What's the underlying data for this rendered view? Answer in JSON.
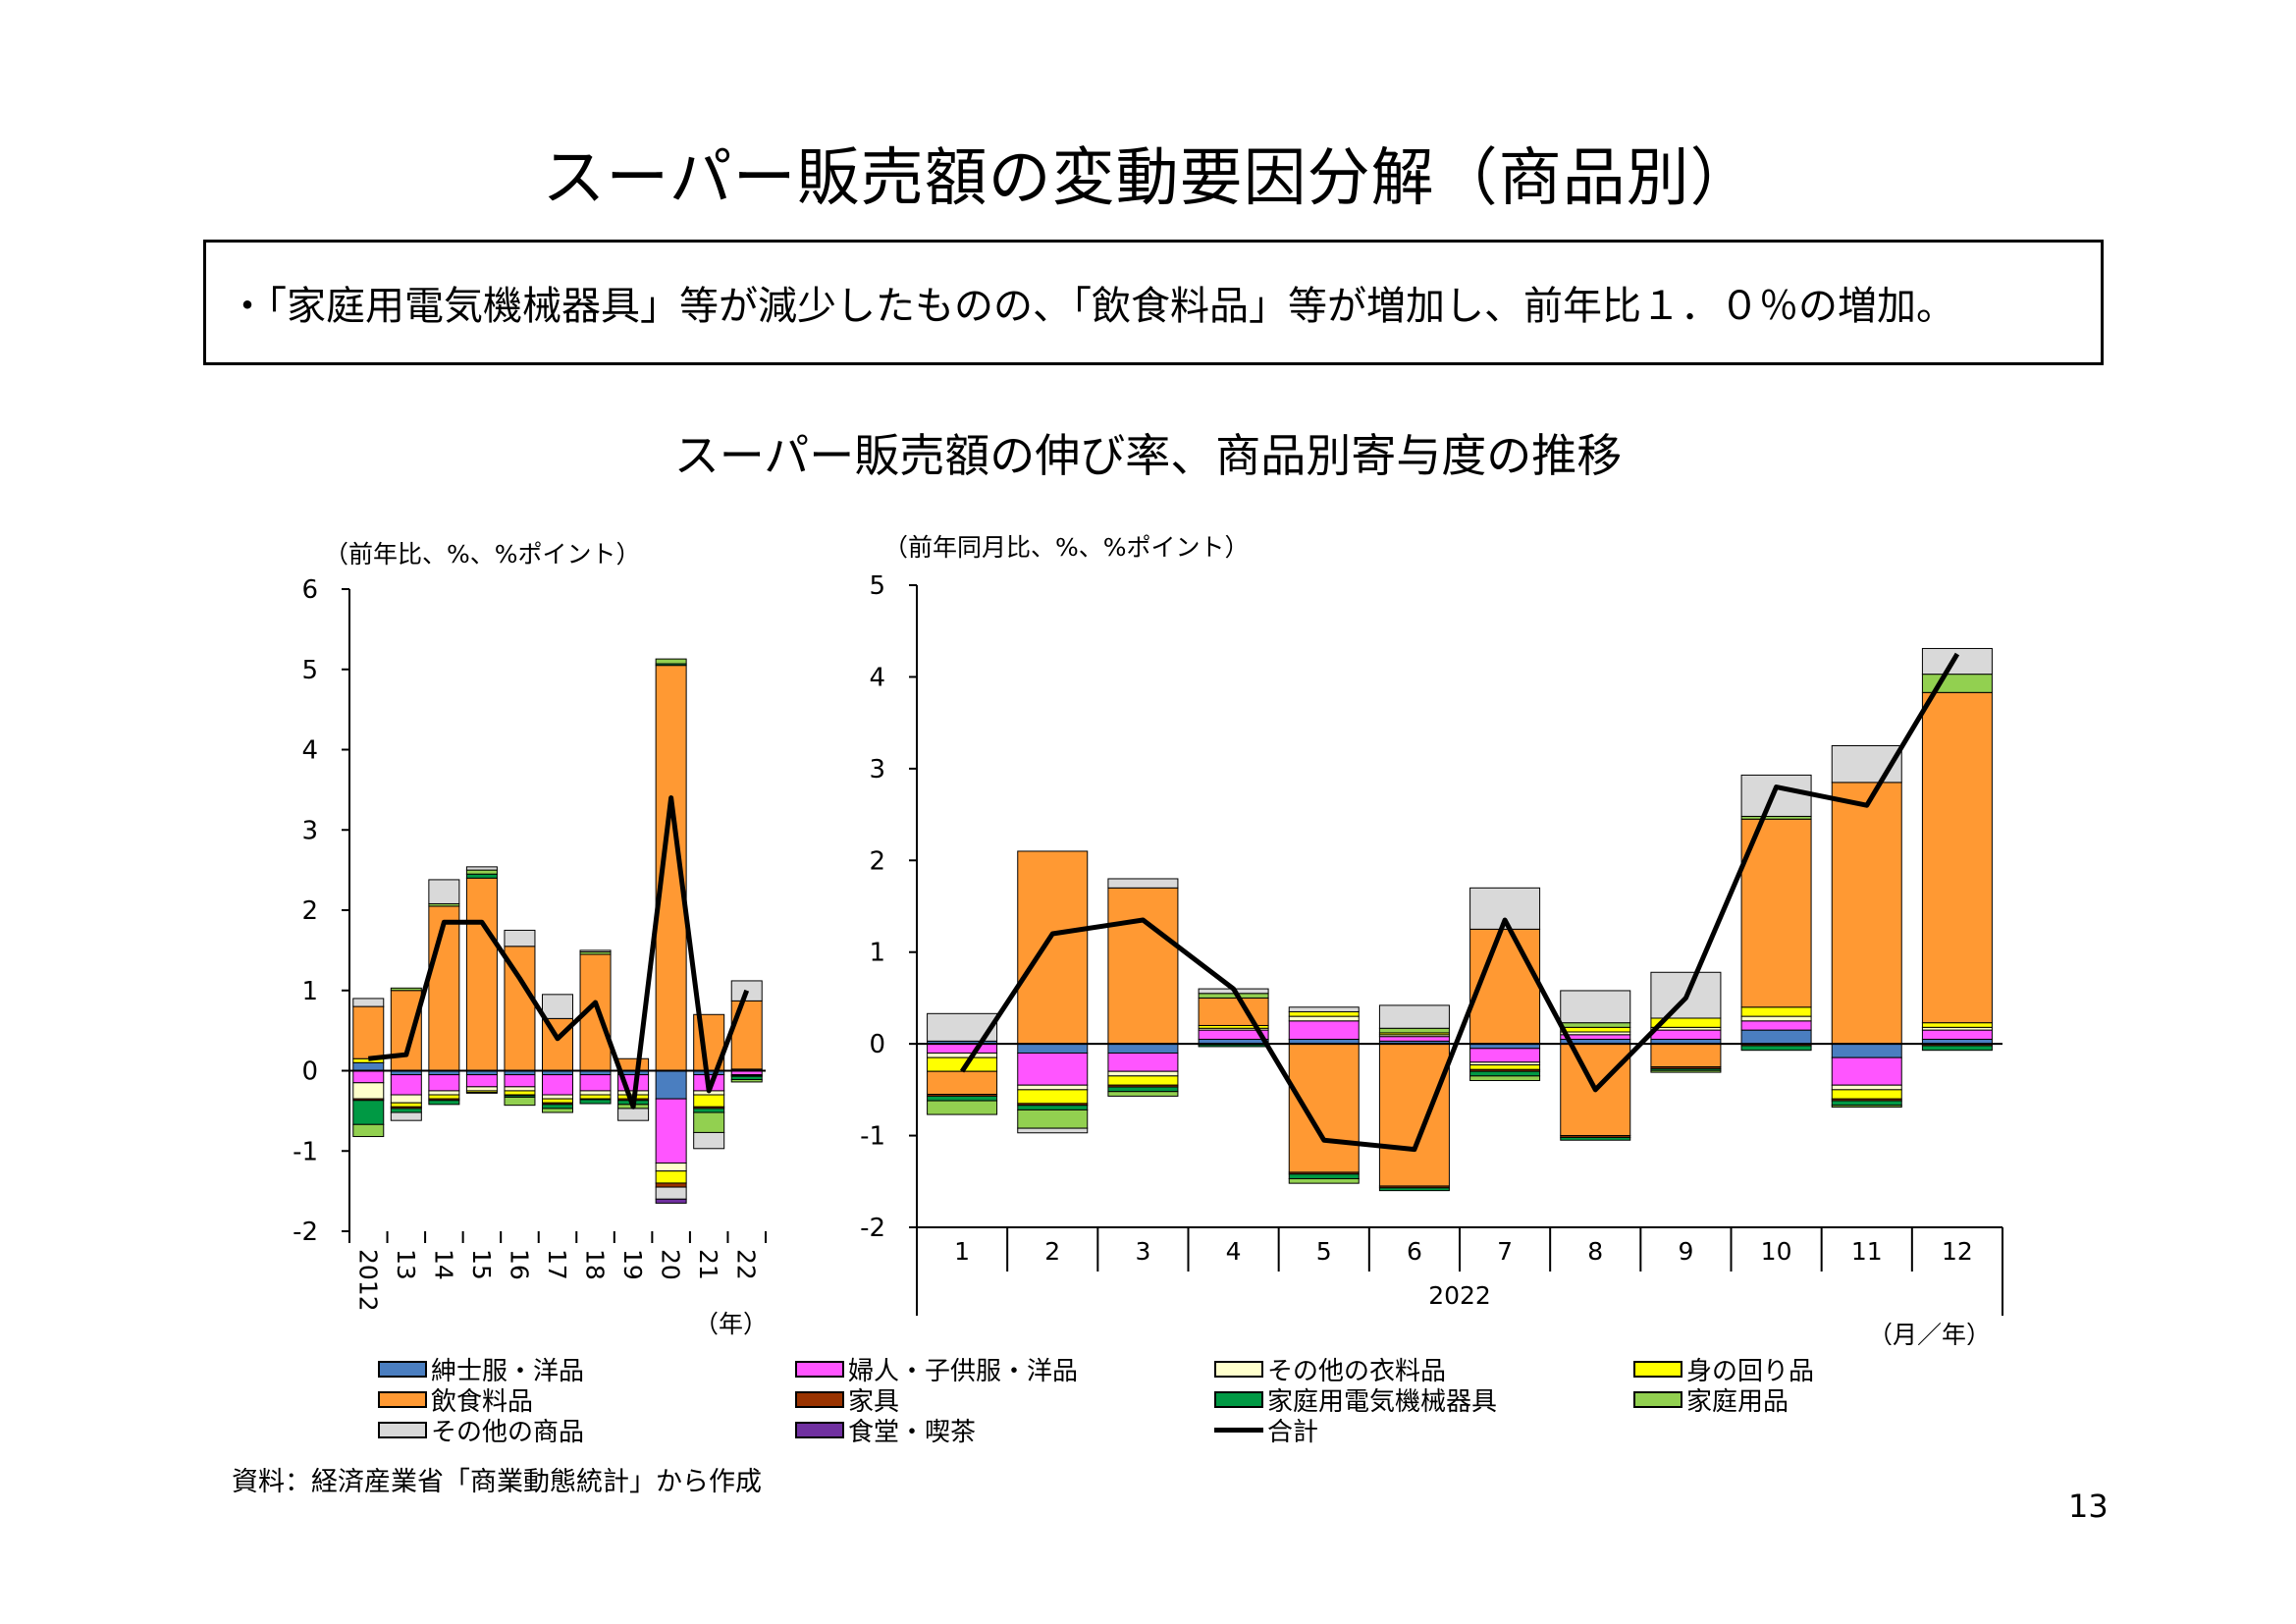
{
  "title": "スーパー販売額の変動要因分解（商品別）",
  "summary": "・「家庭用電気機械器具」等が減少したものの、「飲食料品」等が増加し、前年比１．０％の増加。",
  "subtitle": "スーパー販売額の伸び率、商品別寄与度の推移",
  "source": "資料：経済産業省「商業動態統計」から作成",
  "page_number": "13",
  "colors": {
    "mens": "#4a7ec0",
    "womens": "#ff55ff",
    "other_clothing": "#ffffcc",
    "personal": "#ffff00",
    "food": "#ff9933",
    "furniture": "#993300",
    "electric": "#009944",
    "household": "#92d050",
    "other": "#d9d9d9",
    "restaurant": "#7030a0",
    "total": "#000000"
  },
  "legend": [
    {
      "key": "mens",
      "label": "紳士服・洋品"
    },
    {
      "key": "womens",
      "label": "婦人・子供服・洋品"
    },
    {
      "key": "other_clothing",
      "label": "その他の衣料品"
    },
    {
      "key": "personal",
      "label": "身の回り品"
    },
    {
      "key": "food",
      "label": "飲食料品"
    },
    {
      "key": "furniture",
      "label": "家具"
    },
    {
      "key": "electric",
      "label": "家庭用電気機械器具"
    },
    {
      "key": "household",
      "label": "家庭用品"
    },
    {
      "key": "other",
      "label": "その他の商品"
    },
    {
      "key": "restaurant",
      "label": "食堂・喫茶"
    },
    {
      "key": "total",
      "label": "合計"
    }
  ],
  "chart_data": [
    {
      "type": "bar",
      "stacked": true,
      "unit_label": "（前年比、%、%ポイント）",
      "x_unit": "（年）",
      "categories": [
        "2012",
        "13",
        "14",
        "15",
        "16",
        "17",
        "18",
        "19",
        "20",
        "21",
        "22"
      ],
      "ylim": [
        -2,
        6
      ],
      "yticks": [
        -2,
        -1,
        0,
        1,
        2,
        3,
        4,
        5,
        6
      ],
      "series": [
        {
          "key": "mens",
          "name": "紳士服・洋品",
          "values": [
            0.1,
            -0.05,
            -0.05,
            -0.05,
            -0.05,
            -0.05,
            -0.05,
            -0.05,
            -0.35,
            -0.05,
            0.02
          ]
        },
        {
          "key": "womens",
          "name": "婦人・子供服・洋品",
          "values": [
            -0.15,
            -0.25,
            -0.2,
            -0.15,
            -0.15,
            -0.25,
            -0.2,
            -0.2,
            -0.8,
            -0.2,
            -0.05
          ]
        },
        {
          "key": "other_clothing",
          "name": "その他の衣料品",
          "values": [
            -0.2,
            -0.1,
            -0.05,
            -0.05,
            -0.05,
            -0.05,
            -0.05,
            -0.05,
            -0.1,
            -0.05,
            -0.01
          ]
        },
        {
          "key": "personal",
          "name": "身の回り品",
          "values": [
            0.05,
            -0.05,
            -0.05,
            -0.02,
            -0.05,
            -0.05,
            -0.05,
            -0.05,
            -0.15,
            -0.15,
            0.0
          ]
        },
        {
          "key": "food",
          "name": "飲食料品",
          "values": [
            0.65,
            1.0,
            2.05,
            2.4,
            1.55,
            0.65,
            1.45,
            0.15,
            5.05,
            0.7,
            0.85
          ]
        },
        {
          "key": "furniture",
          "name": "家具",
          "values": [
            -0.02,
            -0.02,
            -0.02,
            -0.01,
            -0.01,
            -0.02,
            -0.01,
            -0.02,
            -0.05,
            -0.02,
            -0.01
          ]
        },
        {
          "key": "electric",
          "name": "家庭用電気機械器具",
          "values": [
            -0.3,
            -0.05,
            -0.05,
            0.05,
            -0.02,
            -0.05,
            -0.05,
            -0.05,
            0.02,
            -0.05,
            -0.04
          ]
        },
        {
          "key": "household",
          "name": "家庭用品",
          "values": [
            -0.15,
            0.03,
            0.03,
            0.05,
            -0.1,
            -0.05,
            0.03,
            -0.05,
            0.06,
            -0.25,
            -0.03
          ]
        },
        {
          "key": "other",
          "name": "その他の商品",
          "values": [
            0.1,
            -0.1,
            0.3,
            0.04,
            0.2,
            0.3,
            0.02,
            -0.15,
            -0.15,
            -0.2,
            0.25
          ]
        },
        {
          "key": "restaurant",
          "name": "食堂・喫茶",
          "values": [
            0.0,
            0.0,
            0.0,
            0.0,
            0.0,
            0.0,
            0.0,
            0.0,
            -0.05,
            0.0,
            0.0
          ]
        }
      ],
      "total": {
        "key": "total",
        "name": "合計",
        "values": [
          0.15,
          0.2,
          1.85,
          1.85,
          1.15,
          0.4,
          0.85,
          -0.45,
          3.4,
          -0.25,
          1.0
        ]
      }
    },
    {
      "type": "bar",
      "stacked": true,
      "unit_label": "（前年同月比、%、%ポイント）",
      "x_unit": "（月／年）",
      "year_label": "2022",
      "categories": [
        "1",
        "2",
        "3",
        "4",
        "5",
        "6",
        "7",
        "8",
        "9",
        "10",
        "11",
        "12"
      ],
      "ylim": [
        -2,
        5
      ],
      "yticks": [
        -2,
        -1,
        0,
        1,
        2,
        3,
        4,
        5
      ],
      "series": [
        {
          "key": "mens",
          "name": "紳士服・洋品",
          "values": [
            0.03,
            -0.1,
            -0.1,
            0.05,
            0.05,
            0.03,
            -0.05,
            0.05,
            0.05,
            0.15,
            -0.15,
            0.05
          ]
        },
        {
          "key": "womens",
          "name": "婦人・子供服・洋品",
          "values": [
            -0.1,
            -0.35,
            -0.2,
            0.1,
            0.2,
            0.05,
            -0.15,
            0.05,
            0.1,
            0.1,
            -0.3,
            0.1
          ]
        },
        {
          "key": "other_clothing",
          "name": "その他の衣料品",
          "values": [
            -0.05,
            -0.05,
            -0.05,
            0.02,
            0.05,
            0.02,
            -0.03,
            0.03,
            0.03,
            0.05,
            -0.05,
            0.03
          ]
        },
        {
          "key": "personal",
          "name": "身の回り品",
          "values": [
            -0.15,
            -0.15,
            -0.1,
            0.03,
            0.05,
            0.02,
            -0.05,
            0.05,
            0.1,
            0.1,
            -0.1,
            0.05
          ]
        },
        {
          "key": "food",
          "name": "飲食料品",
          "values": [
            -0.25,
            2.1,
            1.7,
            0.3,
            -1.4,
            -1.55,
            1.25,
            -1.0,
            -0.25,
            2.05,
            2.85,
            3.6
          ]
        },
        {
          "key": "furniture",
          "name": "家具",
          "values": [
            -0.02,
            -0.02,
            -0.02,
            -0.01,
            -0.02,
            -0.02,
            -0.02,
            -0.02,
            -0.02,
            -0.02,
            -0.02,
            -0.02
          ]
        },
        {
          "key": "electric",
          "name": "家庭用電気機械器具",
          "values": [
            -0.05,
            -0.05,
            -0.05,
            -0.02,
            -0.05,
            -0.03,
            -0.05,
            -0.03,
            -0.02,
            -0.05,
            -0.05,
            -0.05
          ]
        },
        {
          "key": "household",
          "name": "家庭用品",
          "values": [
            -0.15,
            -0.2,
            -0.05,
            0.05,
            -0.05,
            0.05,
            -0.05,
            0.05,
            -0.02,
            0.03,
            -0.02,
            0.2
          ]
        },
        {
          "key": "other",
          "name": "その他の商品",
          "values": [
            0.3,
            -0.05,
            0.1,
            0.05,
            0.05,
            0.25,
            0.45,
            0.35,
            0.5,
            0.45,
            0.4,
            0.28
          ]
        },
        {
          "key": "restaurant",
          "name": "食堂・喫茶",
          "values": [
            0.0,
            0.0,
            0.0,
            0.0,
            0.0,
            0.0,
            0.0,
            0.0,
            0.0,
            0.0,
            0.0,
            0.0
          ]
        }
      ],
      "total": {
        "key": "total",
        "name": "合計",
        "values": [
          -0.3,
          1.2,
          1.35,
          0.6,
          -1.05,
          -1.15,
          1.35,
          -0.5,
          0.5,
          2.8,
          2.6,
          4.25
        ]
      }
    }
  ]
}
